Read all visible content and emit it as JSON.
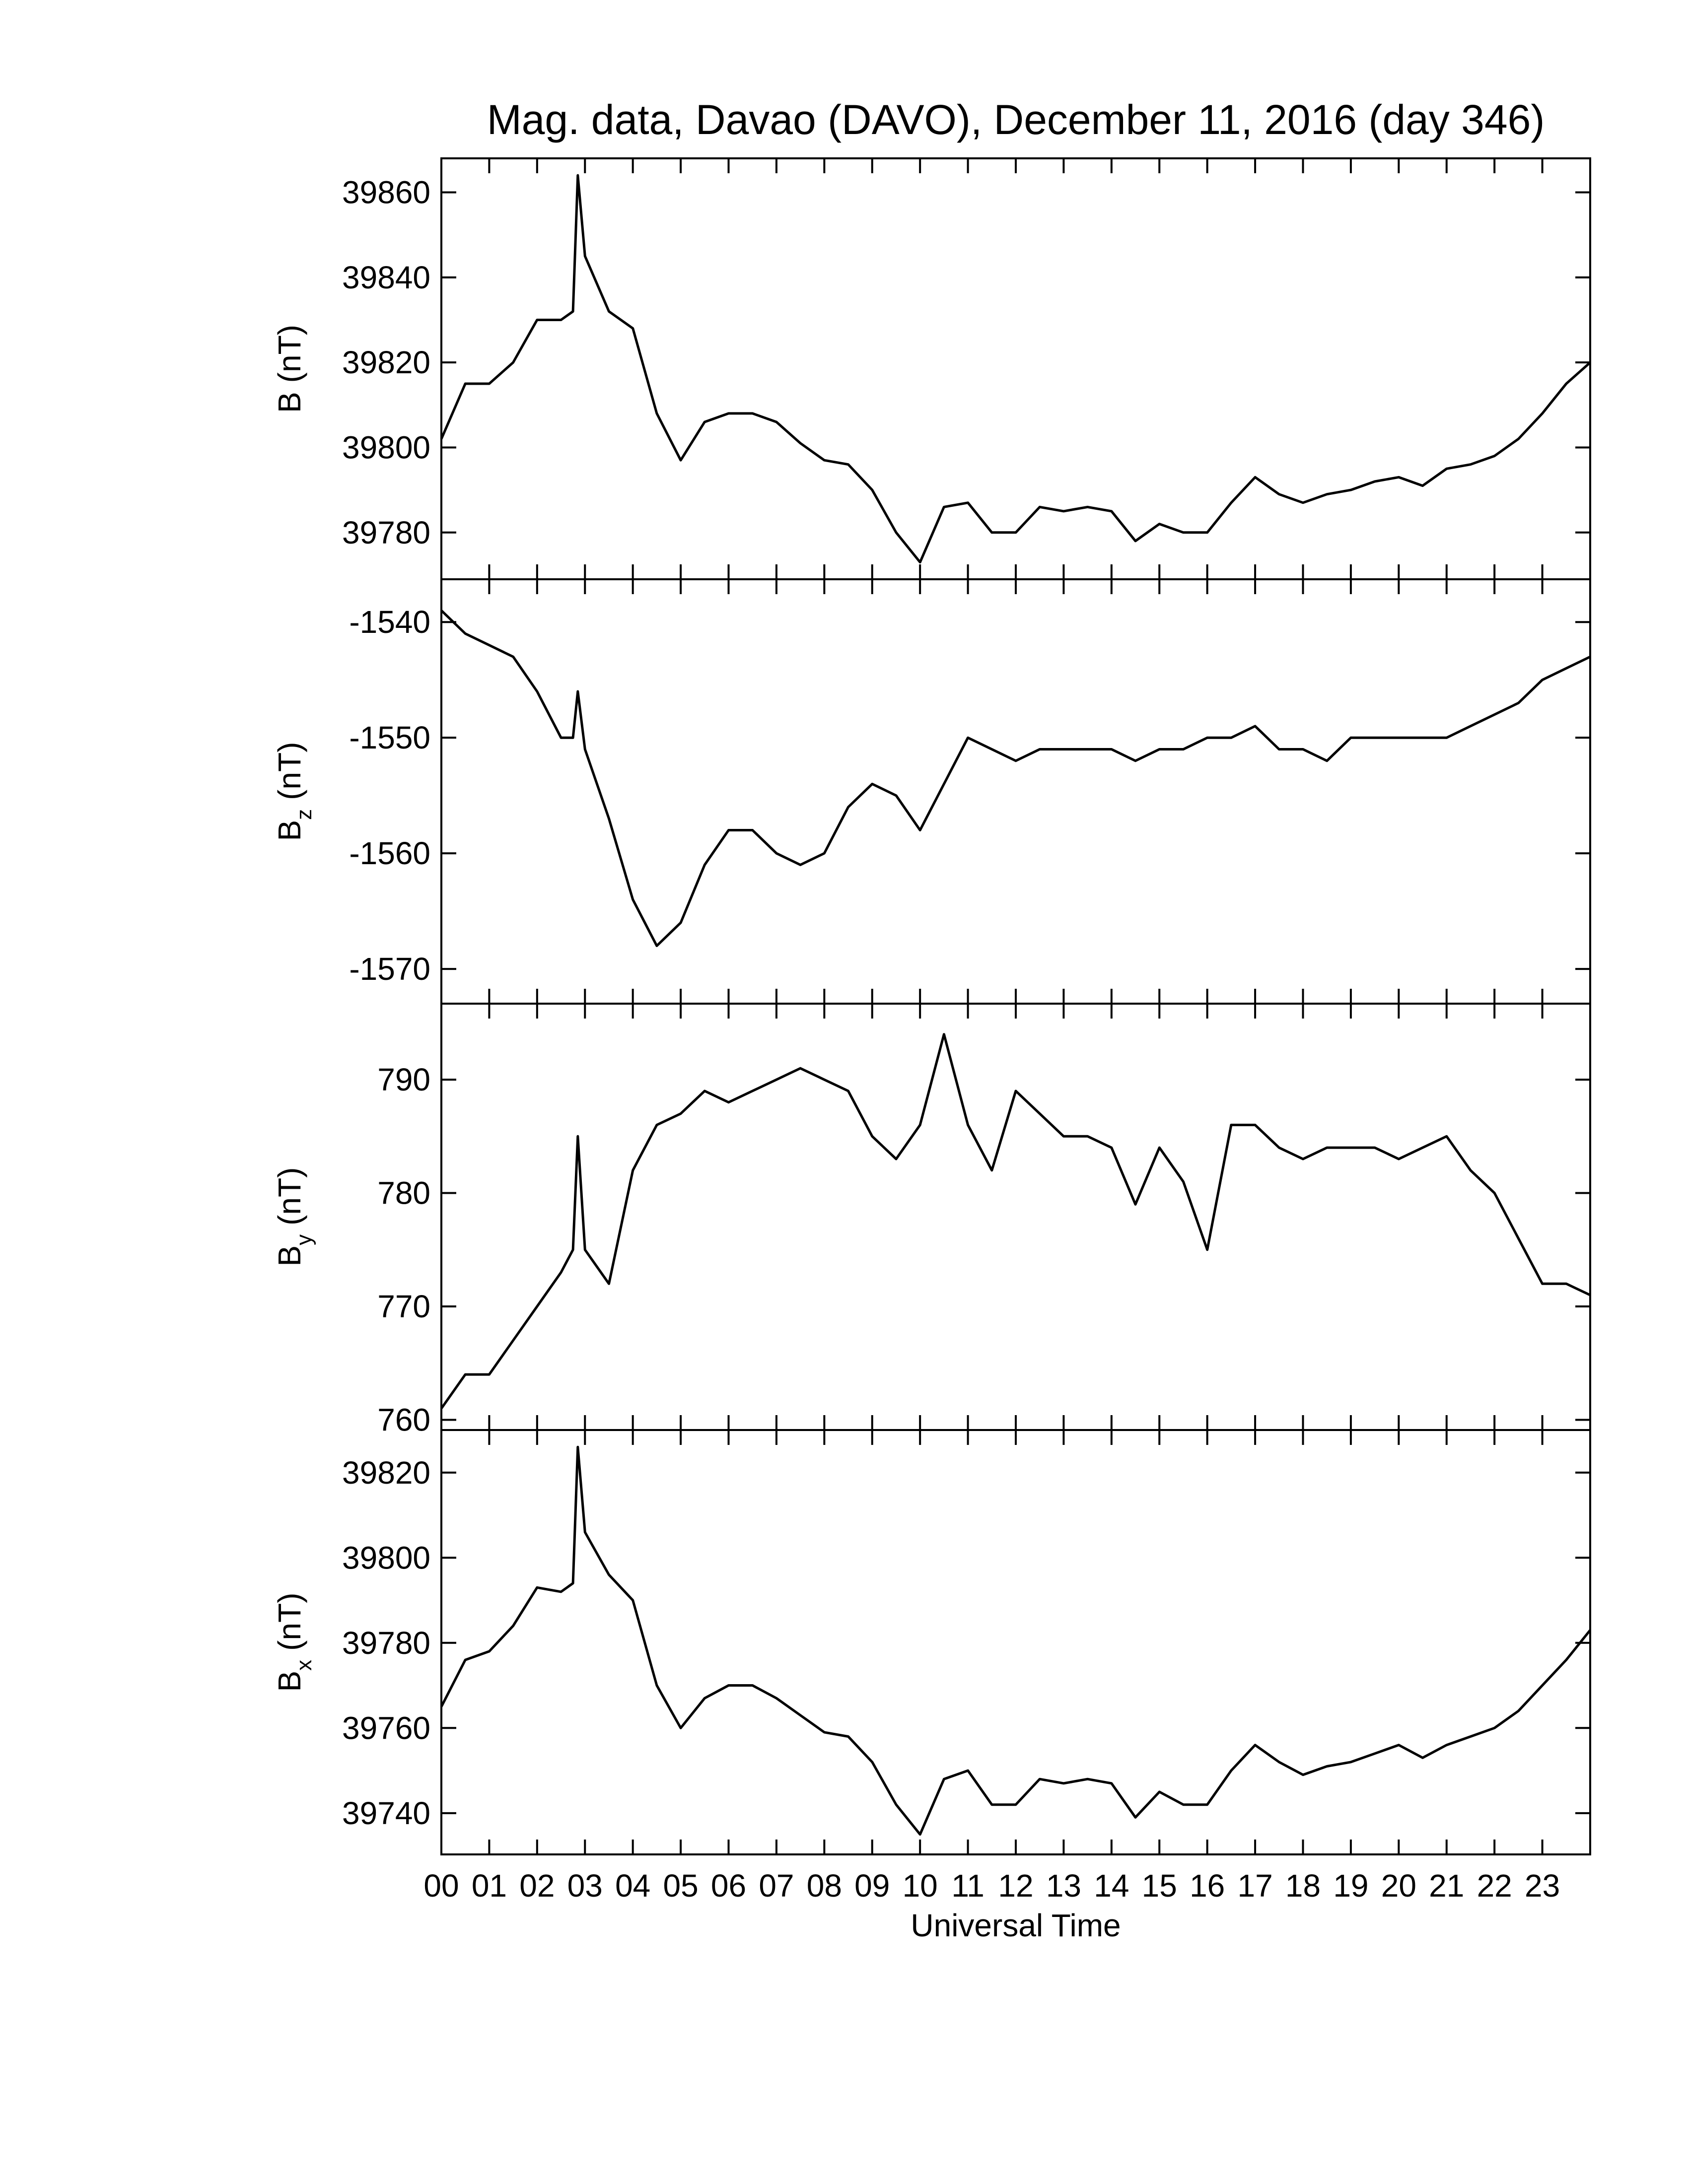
{
  "chart_data": [
    {
      "type": "line",
      "title": "Mag. data, Davao (DAVO), December 11, 2016 (day 346)",
      "ylabel": "B",
      "ylabel_unit": "(nT)",
      "color": "#000000",
      "x": [
        0,
        0.5,
        1,
        1.5,
        2,
        2.5,
        2.75,
        2.85,
        3,
        3.5,
        4,
        4.5,
        5,
        5.5,
        6,
        6.5,
        7,
        7.5,
        8,
        8.5,
        9,
        9.5,
        10,
        10.5,
        11,
        11.5,
        12,
        12.5,
        13,
        13.5,
        14,
        14.5,
        15,
        15.5,
        16,
        16.5,
        17,
        17.5,
        18,
        18.5,
        19,
        19.5,
        20,
        20.5,
        21,
        21.5,
        22,
        22.5,
        23,
        23.5,
        24
      ],
      "values": [
        39802,
        39815,
        39815,
        39820,
        39830,
        39830,
        39832,
        39864,
        39845,
        39832,
        39828,
        39808,
        39797,
        39806,
        39808,
        39808,
        39806,
        39801,
        39797,
        39796,
        39790,
        39780,
        39773,
        39786,
        39787,
        39780,
        39780,
        39786,
        39785,
        39786,
        39785,
        39778,
        39782,
        39780,
        39780,
        39787,
        39793,
        39789,
        39787,
        39789,
        39790,
        39792,
        39793,
        39791,
        39795,
        39796,
        39798,
        39802,
        39808,
        39815,
        39820
      ],
      "xlim": [
        0,
        24
      ],
      "ylim": [
        39769,
        39868
      ],
      "yticks": [
        39780,
        39800,
        39820,
        39840,
        39860
      ]
    },
    {
      "type": "line",
      "ylabel": "B",
      "ylabel_sub": "z",
      "ylabel_unit": "(nT)",
      "color": "#000000",
      "x": [
        0,
        0.5,
        1,
        1.5,
        2,
        2.5,
        2.75,
        2.85,
        3,
        3.5,
        4,
        4.5,
        5,
        5.5,
        6,
        6.5,
        7,
        7.5,
        8,
        8.5,
        9,
        9.5,
        10,
        10.5,
        11,
        11.5,
        12,
        12.5,
        13,
        13.5,
        14,
        14.5,
        15,
        15.5,
        16,
        16.5,
        17,
        17.5,
        18,
        18.5,
        19,
        19.5,
        20,
        20.5,
        21,
        21.5,
        22,
        22.5,
        23,
        23.5,
        24
      ],
      "values": [
        -1539,
        -1541,
        -1542,
        -1543,
        -1546,
        -1550,
        -1550,
        -1546,
        -1551,
        -1557,
        -1564,
        -1568,
        -1566,
        -1561,
        -1558,
        -1558,
        -1560,
        -1561,
        -1560,
        -1556,
        -1554,
        -1555,
        -1558,
        -1554,
        -1550,
        -1551,
        -1552,
        -1551,
        -1551,
        -1551,
        -1551,
        -1552,
        -1551,
        -1551,
        -1550,
        -1550,
        -1549,
        -1551,
        -1551,
        -1552,
        -1550,
        -1550,
        -1550,
        -1550,
        -1550,
        -1549,
        -1548,
        -1547,
        -1545,
        -1544,
        -1543
      ],
      "xlim": [
        0,
        24
      ],
      "ylim": [
        -1573,
        -1536.3
      ],
      "yticks": [
        -1570,
        -1560,
        -1550,
        -1540
      ]
    },
    {
      "type": "line",
      "ylabel": "B",
      "ylabel_sub": "y",
      "ylabel_unit": "(nT)",
      "color": "#000000",
      "x": [
        0,
        0.5,
        1,
        1.5,
        2,
        2.5,
        2.75,
        2.85,
        3,
        3.5,
        4,
        4.5,
        5,
        5.5,
        6,
        6.5,
        7,
        7.5,
        8,
        8.5,
        9,
        9.5,
        10,
        10.5,
        11,
        11.5,
        12,
        12.5,
        13,
        13.5,
        14,
        14.5,
        15,
        15.5,
        16,
        16.5,
        17,
        17.5,
        18,
        18.5,
        19,
        19.5,
        20,
        20.5,
        21,
        21.5,
        22,
        22.5,
        23,
        23.5,
        24
      ],
      "values": [
        761,
        764,
        764,
        767,
        770,
        773,
        775,
        785,
        775,
        772,
        782,
        786,
        787,
        789,
        788,
        789,
        790,
        791,
        790,
        789,
        785,
        783,
        786,
        794,
        786,
        782,
        789,
        787,
        785,
        785,
        784,
        779,
        784,
        781,
        775,
        786,
        786,
        784,
        783,
        784,
        784,
        784,
        783,
        784,
        785,
        782,
        780,
        776,
        772,
        772,
        771
      ],
      "xlim": [
        0,
        24
      ],
      "ylim": [
        759.1,
        796.7
      ],
      "yticks": [
        760,
        770,
        780,
        790
      ]
    },
    {
      "type": "line",
      "ylabel": "B",
      "ylabel_sub": "x",
      "ylabel_unit": "(nT)",
      "xlabel": "Universal Time",
      "color": "#000000",
      "x": [
        0,
        0.5,
        1,
        1.5,
        2,
        2.5,
        2.75,
        2.85,
        3,
        3.5,
        4,
        4.5,
        5,
        5.5,
        6,
        6.5,
        7,
        7.5,
        8,
        8.5,
        9,
        9.5,
        10,
        10.5,
        11,
        11.5,
        12,
        12.5,
        13,
        13.5,
        14,
        14.5,
        15,
        15.5,
        16,
        16.5,
        17,
        17.5,
        18,
        18.5,
        19,
        19.5,
        20,
        20.5,
        21,
        21.5,
        22,
        22.5,
        23,
        23.5,
        24
      ],
      "values": [
        39765,
        39776,
        39778,
        39784,
        39793,
        39792,
        39794,
        39826,
        39806,
        39796,
        39790,
        39770,
        39760,
        39767,
        39770,
        39770,
        39767,
        39763,
        39759,
        39758,
        39752,
        39742,
        39735,
        39748,
        39750,
        39742,
        39742,
        39748,
        39747,
        39748,
        39747,
        39739,
        39745,
        39742,
        39742,
        39750,
        39756,
        39752,
        39749,
        39751,
        39752,
        39754,
        39756,
        39753,
        39756,
        39758,
        39760,
        39764,
        39770,
        39776,
        39783
      ],
      "xlim": [
        0,
        24
      ],
      "ylim": [
        39730.3,
        39830
      ],
      "yticks": [
        39740,
        39760,
        39780,
        39800,
        39820
      ],
      "xticks": [
        {
          "value": 0,
          "label": "00"
        },
        {
          "value": 1,
          "label": "01"
        },
        {
          "value": 2,
          "label": "02"
        },
        {
          "value": 3,
          "label": "03"
        },
        {
          "value": 4,
          "label": "04"
        },
        {
          "value": 5,
          "label": "05"
        },
        {
          "value": 6,
          "label": "06"
        },
        {
          "value": 7,
          "label": "07"
        },
        {
          "value": 8,
          "label": "08"
        },
        {
          "value": 9,
          "label": "09"
        },
        10,
        11,
        12,
        13,
        14,
        15,
        16,
        17,
        18,
        19,
        20,
        21,
        22,
        23
      ]
    }
  ]
}
